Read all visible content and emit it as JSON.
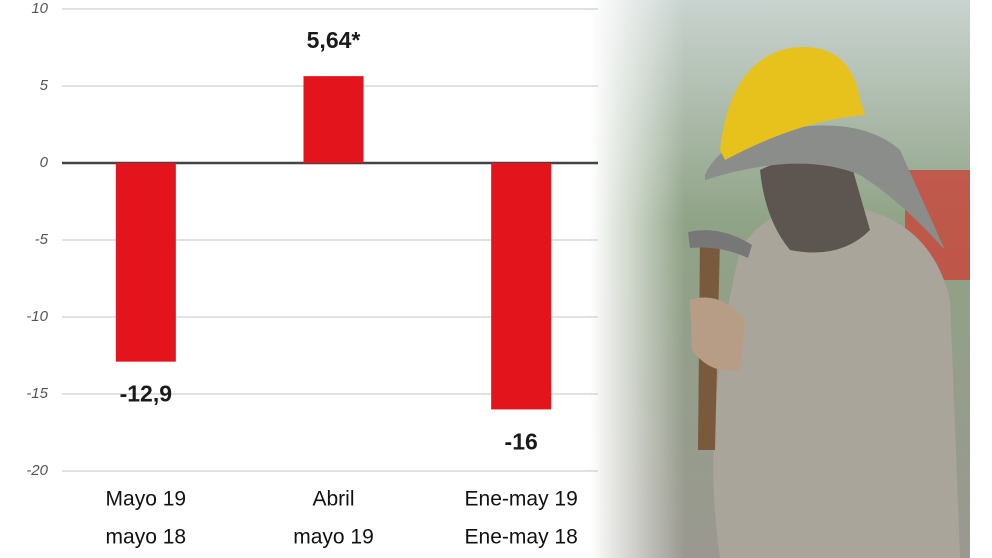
{
  "chart_data": {
    "type": "bar",
    "categories": [
      [
        "Mayo 19",
        "mayo 18"
      ],
      [
        "Abril",
        "mayo 19"
      ],
      [
        "Ene-may 19",
        "Ene-may 18"
      ]
    ],
    "values": [
      -12.9,
      5.64,
      -16
    ],
    "value_labels": [
      "-12,9",
      "5,64*",
      "-16"
    ],
    "color": "#e3141b",
    "ylim": [
      -20,
      10
    ],
    "yticks": [
      10,
      5,
      0,
      -5,
      -10,
      -15,
      -20
    ],
    "grid": true
  }
}
